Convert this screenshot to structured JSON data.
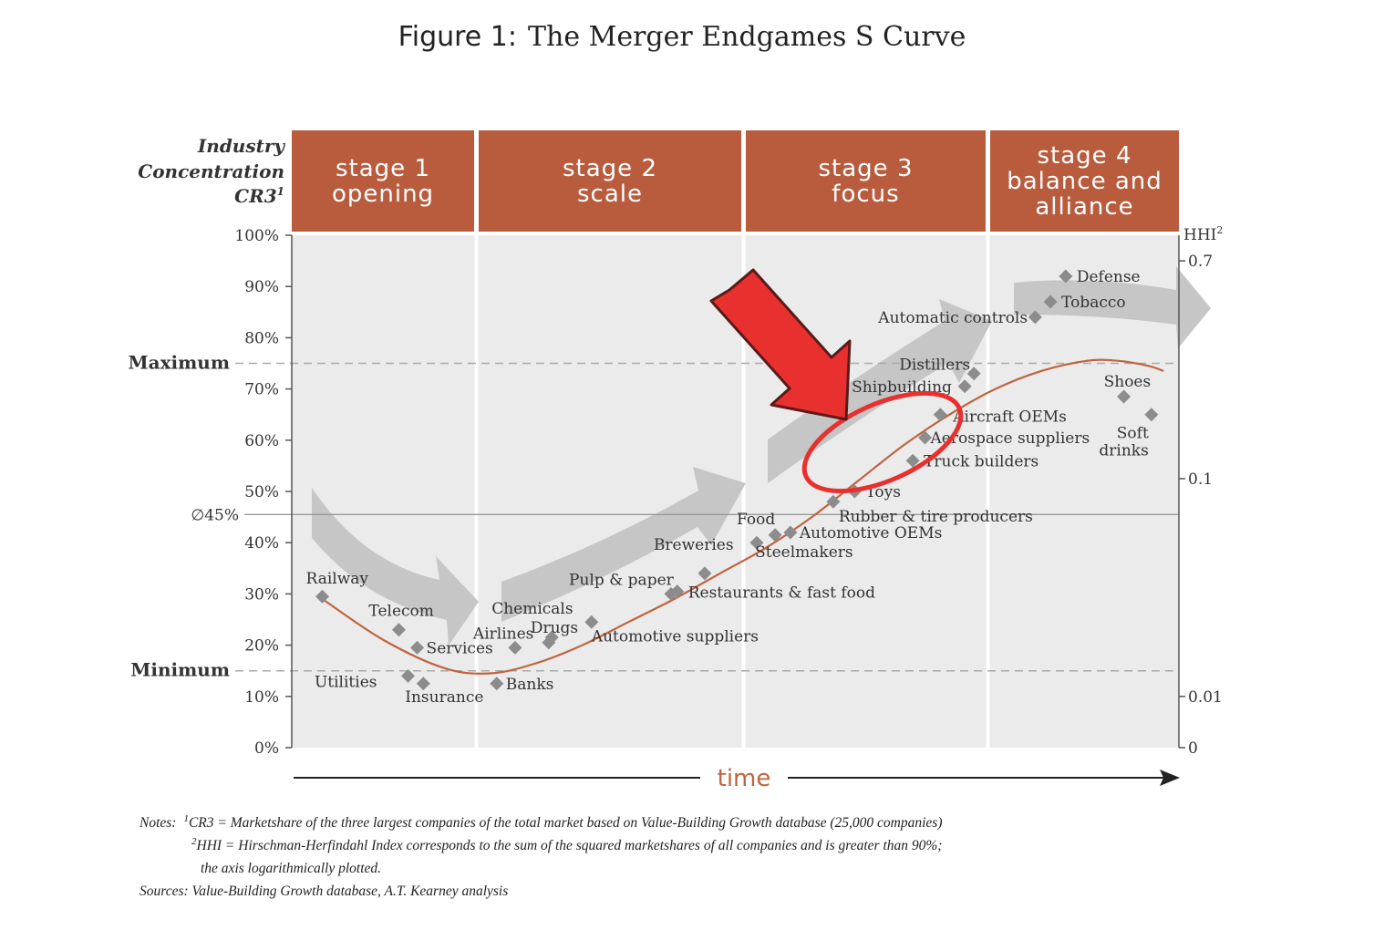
{
  "figure": {
    "title_prefix": "Figure 1:",
    "title_main": "The Merger Endgames S Curve"
  },
  "chart_data": {
    "type": "scatter",
    "title": "Figure 1: The Merger Endgames S Curve",
    "ylabel_lines": [
      "Industry",
      "Concentration",
      "CR3"
    ],
    "ylabel_sup": "1",
    "xlabel": "time",
    "y2label": "HHI",
    "y2label_sup": "2",
    "ylim": [
      0,
      100
    ],
    "yticks": [
      "0%",
      "10%",
      "20%",
      "30%",
      "40%",
      "50%",
      "60%",
      "70%",
      "80%",
      "90%",
      "100%"
    ],
    "y2ticks": [
      "0.7",
      "0.1",
      "0.01",
      "0"
    ],
    "reference_lines": [
      {
        "label": "Maximum",
        "y": 75,
        "style": "dashed"
      },
      {
        "label": "Minimum",
        "y": 15,
        "style": "dashed"
      },
      {
        "label": "∅45%",
        "y": 45.5,
        "style": "solid"
      }
    ],
    "stages": [
      {
        "lines": [
          "stage 1",
          "opening"
        ]
      },
      {
        "lines": [
          "stage 2",
          "scale"
        ]
      },
      {
        "lines": [
          "stage 3",
          "focus"
        ]
      },
      {
        "lines": [
          "stage 4",
          "balance and",
          "alliance"
        ]
      }
    ],
    "points": [
      {
        "label": "Railway",
        "x": 1.0,
        "y": 29.5
      },
      {
        "label": "Telecom",
        "x": 3.5,
        "y": 23
      },
      {
        "label": "Services",
        "x": 4.1,
        "y": 19.5
      },
      {
        "label": "Utilities",
        "x": 3.8,
        "y": 14
      },
      {
        "label": "Insurance",
        "x": 4.3,
        "y": 12.5
      },
      {
        "label": "Banks",
        "x": 6.7,
        "y": 12.5
      },
      {
        "label": "Airlines",
        "x": 7.3,
        "y": 19.5
      },
      {
        "label": "Chemicals",
        "x": 8.5,
        "y": 21.5
      },
      {
        "label": "Drugs",
        "x": 8.4,
        "y": 20.5
      },
      {
        "label": "Automotive suppliers",
        "x": 9.8,
        "y": 24.5
      },
      {
        "label": "Pulp & paper",
        "x": 12.4,
        "y": 30
      },
      {
        "label": "Restaurants & fast food",
        "x": 12.6,
        "y": 30.5
      },
      {
        "label": "Breweries",
        "x": 13.5,
        "y": 34
      },
      {
        "label": "Food",
        "x": 15.2,
        "y": 40
      },
      {
        "label": "Steelmakers",
        "x": 15.8,
        "y": 41.5
      },
      {
        "label": "Automotive OEMs",
        "x": 16.3,
        "y": 42
      },
      {
        "label": "Rubber & tire producers",
        "x": 17.7,
        "y": 48
      },
      {
        "label": "Toys",
        "x": 18.4,
        "y": 50
      },
      {
        "label": "Truck builders",
        "x": 20.3,
        "y": 56
      },
      {
        "label": "Aerospace suppliers",
        "x": 20.7,
        "y": 60.5
      },
      {
        "label": "Aircraft OEMs",
        "x": 21.2,
        "y": 65
      },
      {
        "label": "Shipbuilding",
        "x": 22.0,
        "y": 70.5
      },
      {
        "label": "Distillers",
        "x": 22.3,
        "y": 73
      },
      {
        "label": "Automatic controls",
        "x": 24.3,
        "y": 84
      },
      {
        "label": "Tobacco",
        "x": 24.8,
        "y": 87
      },
      {
        "label": "Defense",
        "x": 25.3,
        "y": 92
      },
      {
        "label": "Shoes",
        "x": 27.2,
        "y": 68.5
      },
      {
        "label": "Soft drinks",
        "x": 28.1,
        "y": 65
      }
    ],
    "s_curve": [
      [
        1.0,
        29
      ],
      [
        3.0,
        21
      ],
      [
        5.0,
        15.5
      ],
      [
        6.5,
        14.5
      ],
      [
        8.0,
        16.5
      ],
      [
        9.5,
        20
      ],
      [
        11.0,
        24.5
      ],
      [
        12.5,
        29
      ],
      [
        14.0,
        34
      ],
      [
        15.5,
        39
      ],
      [
        17.0,
        45
      ],
      [
        18.5,
        52
      ],
      [
        20.0,
        59
      ],
      [
        21.5,
        65
      ],
      [
        23.0,
        70
      ],
      [
        24.5,
        73.5
      ],
      [
        26.0,
        75.5
      ],
      [
        27.0,
        75.5
      ],
      [
        28.0,
        74.5
      ],
      [
        28.5,
        73.5
      ]
    ]
  },
  "notes": {
    "line1_prefix": "Notes:",
    "line1_sup": "1",
    "line1_text": "CR3 = Marketshare of the three largest companies of the total market based on Value-Building Growth database (25,000 companies)",
    "line2_sup": "2",
    "line2_text": "HHI = Hirschman-Herfindahl Index corresponds to the sum of the squared marketshares of all companies and is greater than 90%;",
    "line3_text": "the axis logarithmically plotted.",
    "sources": "Sources: Value-Building Growth database, A.T. Kearney analysis"
  },
  "colors": {
    "stage_header": "#b95c3e",
    "curve": "#c0643e",
    "marker": "#8c8c8c",
    "plot_bg": "#ebebeb",
    "arrow": "#c6c6c6",
    "annotation": "#e8302e",
    "time_label": "#c0643e"
  }
}
